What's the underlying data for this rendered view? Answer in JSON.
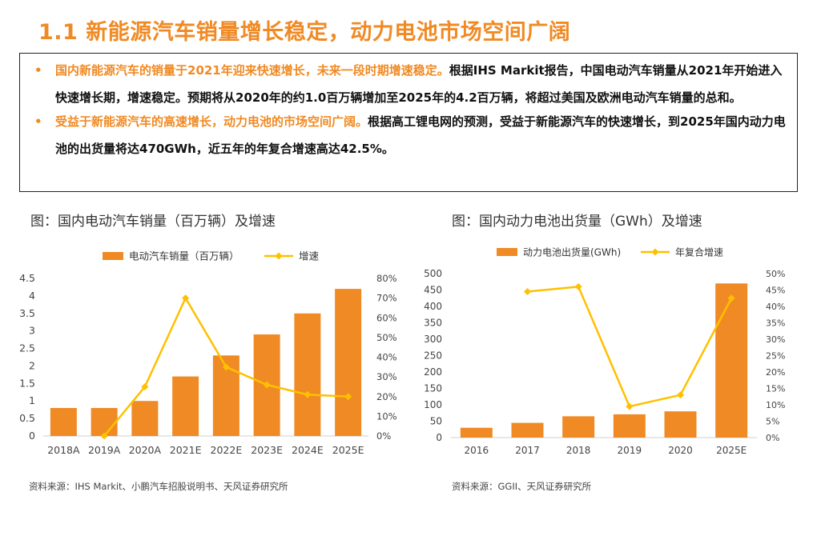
{
  "page": {
    "title": "1.1 新能源汽车销量增长稳定，动力电池市场空间广阔",
    "bullets": [
      {
        "highlight": "国内新能源汽车的销量于2021年迎来快速增长，未来一段时期增速稳定。",
        "text": "根据IHS Markit报告，中国电动汽车销量从2021年开始进入快速增长期，增速稳定。预期将从2020年的约1.0百万辆增加至2025年的4.2百万辆，将超过美国及欧洲电动汽车销量的总和。"
      },
      {
        "highlight": "受益于新能源汽车的高速增长，动力电池的市场空间广阔。",
        "text": "根据高工锂电网的预测，受益于新能源汽车的快速增长，到2025年国内动力电池的出货量将达470GWh，近五年的年复合增速高达42.5%。"
      }
    ],
    "bullet_symbol": "•",
    "accent_color": "#f08a24",
    "line_color": "#ffc000"
  },
  "chart_data": [
    {
      "type": "bar",
      "title": "图：国内电动汽车销量（百万辆）及增速",
      "categories": [
        "2018A",
        "2019A",
        "2020A",
        "2021E",
        "2022E",
        "2023E",
        "2024E",
        "2025E"
      ],
      "series": [
        {
          "name": "电动汽车销量（百万辆）",
          "type": "bar",
          "axis": "left",
          "values": [
            0.8,
            0.8,
            1.0,
            1.7,
            2.3,
            2.9,
            3.5,
            4.2
          ]
        },
        {
          "name": "增速",
          "type": "line",
          "axis": "right",
          "values": [
            null,
            0.0,
            0.25,
            0.7,
            0.35,
            0.26,
            0.21,
            0.2
          ]
        }
      ],
      "ylim": [
        0,
        4.5
      ],
      "yticks": [
        "0",
        "0.5",
        "1",
        "1.5",
        "2",
        "2.5",
        "3",
        "3.5",
        "4",
        "4.5"
      ],
      "y2lim": [
        0,
        0.8
      ],
      "y2ticks": [
        "0%",
        "10%",
        "20%",
        "30%",
        "40%",
        "50%",
        "60%",
        "70%",
        "80%"
      ],
      "legend": "top",
      "grid": false,
      "source": "资料来源：IHS Markit、小鹏汽车招股说明书、天风证券研究所"
    },
    {
      "type": "bar",
      "title": "图：国内动力电池出货量（GWh）及增速",
      "categories": [
        "2016",
        "2017",
        "2018",
        "2019",
        "2020",
        "2025E"
      ],
      "series": [
        {
          "name": "动力电池出货量(GWh)",
          "type": "bar",
          "axis": "left",
          "values": [
            30,
            45,
            65,
            71,
            80,
            470
          ]
        },
        {
          "name": "年复合增速",
          "type": "line",
          "axis": "right",
          "values": [
            null,
            0.445,
            0.46,
            0.095,
            0.13,
            0.425
          ]
        }
      ],
      "ylim": [
        0,
        500
      ],
      "yticks": [
        "0",
        "50",
        "100",
        "150",
        "200",
        "250",
        "300",
        "350",
        "400",
        "450",
        "500"
      ],
      "y2lim": [
        0,
        0.5
      ],
      "y2ticks": [
        "0%",
        "5%",
        "10%",
        "15%",
        "20%",
        "25%",
        "30%",
        "35%",
        "40%",
        "45%",
        "50%"
      ],
      "legend": "top",
      "grid": false,
      "source": "资料来源：GGII、天风证券研究所"
    }
  ]
}
